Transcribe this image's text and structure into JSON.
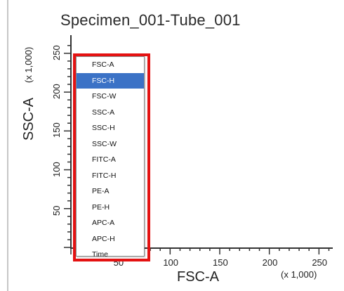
{
  "plot": {
    "title": "Specimen_001-Tube_001",
    "y_axis_title": "SSC-A",
    "y_axis_multiplier": "(x 1,000)",
    "x_axis_title": "FSC-A",
    "x_axis_multiplier": "(x 1,000)",
    "y_ticks": [
      "50",
      "100",
      "150",
      "200",
      "250"
    ],
    "x_ticks": [
      "50",
      "100",
      "150",
      "200",
      "250"
    ]
  },
  "parameter_dropdown": {
    "selected": "FSC-H",
    "items": [
      "FSC-A",
      "FSC-H",
      "FSC-W",
      "SSC-A",
      "SSC-H",
      "SSC-W",
      "FITC-A",
      "FITC-H",
      "PE-A",
      "PE-H",
      "APC-A",
      "APC-H",
      "Time"
    ]
  },
  "annotation": {
    "highlight_color": "#e41212"
  },
  "colors": {
    "selection": "#3b72c6"
  }
}
